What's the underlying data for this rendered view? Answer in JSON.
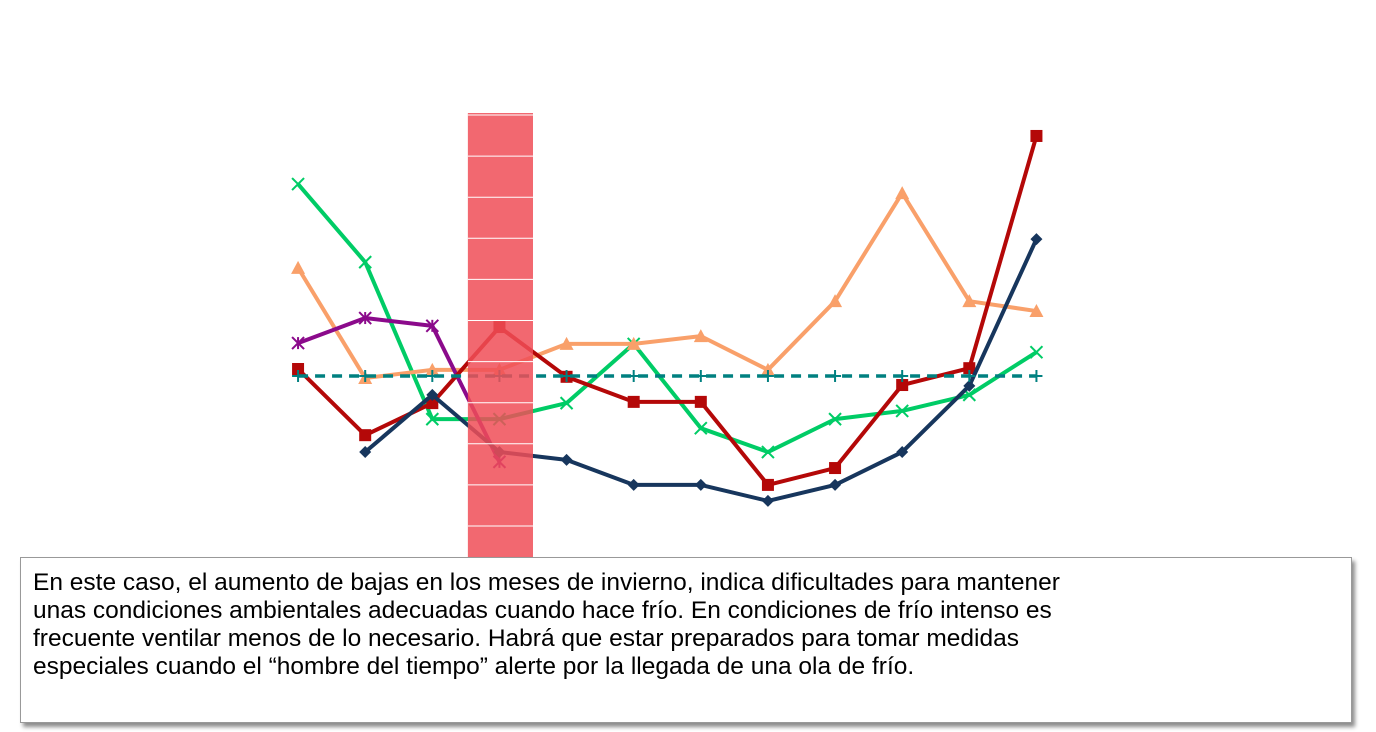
{
  "chart_data": {
    "type": "line",
    "categories": [
      null,
      null,
      null,
      null,
      null,
      null,
      null,
      null,
      null,
      null,
      null,
      null
    ],
    "ylim": [
      0,
      10
    ],
    "yticks": [
      0,
      1,
      2,
      3,
      4,
      5,
      6,
      7,
      8,
      9,
      10
    ],
    "highlight_index": 3,
    "highlight_color": "#f04e57",
    "series": [
      {
        "color": "#00cc66",
        "marker": "x",
        "values": [
          8.32,
          6.42,
          2.6,
          2.6,
          2.99,
          4.43,
          2.38,
          1.8,
          2.6,
          2.8,
          3.19,
          4.23
        ]
      },
      {
        "color": "#f9a06a",
        "marker": "triangle",
        "values": [
          6.28,
          3.6,
          3.8,
          3.8,
          4.43,
          4.43,
          4.62,
          3.8,
          5.47,
          8.1,
          5.47,
          5.23
        ]
      },
      {
        "color": "#8b0a8b",
        "marker": "star",
        "values": [
          4.45,
          5.06,
          4.87,
          1.56,
          null,
          null,
          null,
          null,
          null,
          null,
          null,
          null
        ]
      },
      {
        "color": "#b40808",
        "marker": "square",
        "values": [
          3.82,
          2.21,
          2.99,
          4.84,
          3.63,
          3.02,
          3.02,
          1.0,
          1.41,
          3.43,
          3.84,
          9.49
        ]
      },
      {
        "color": "#17365d",
        "marker": "diamond",
        "values": [
          null,
          1.8,
          3.19,
          1.8,
          1.61,
          1.0,
          1.0,
          0.61,
          1.0,
          1.8,
          3.41,
          6.98
        ]
      },
      {
        "color": "#008080",
        "marker": "plus",
        "dashed": true,
        "values": [
          3.65,
          3.65,
          3.65,
          3.65,
          3.65,
          3.65,
          3.65,
          3.65,
          3.65,
          3.65,
          3.65,
          3.65
        ]
      }
    ]
  },
  "note": {
    "lines": [
      "En este caso, el aumento de bajas en los meses de invierno, indica dificultades para mantener",
      "unas condiciones ambientales adecuadas cuando hace frío. En condiciones de frío intenso es",
      "frecuente ventilar menos de lo necesario. Habrá que estar preparados para tomar medidas",
      "especiales cuando el “hombre del tiempo” alerte por la llegada de una ola de frío."
    ]
  }
}
